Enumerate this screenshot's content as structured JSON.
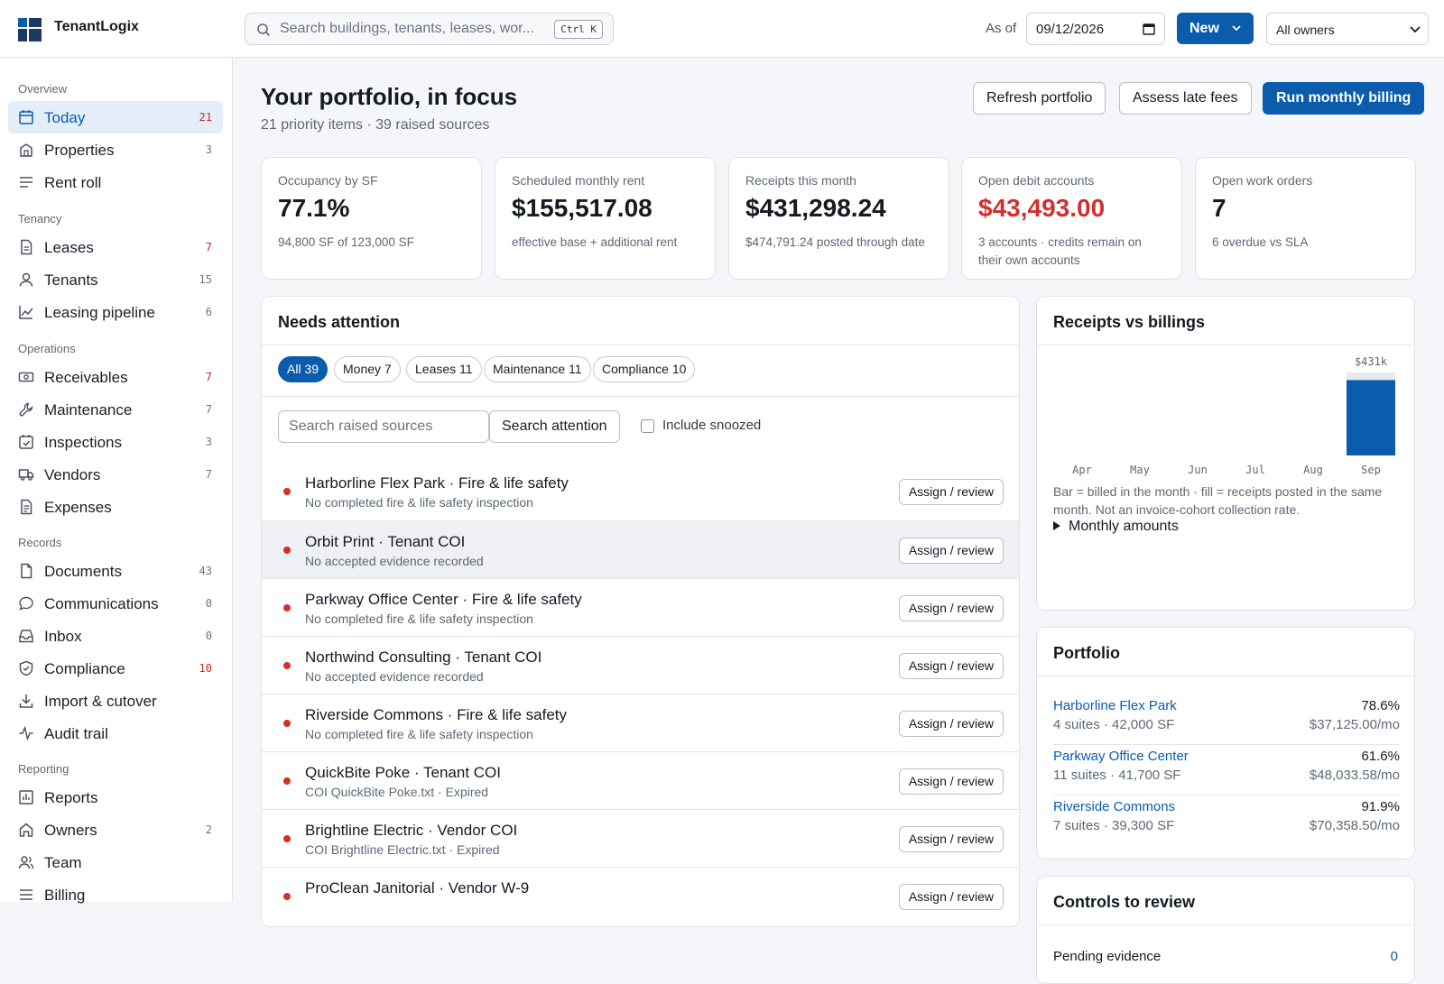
{
  "app": {
    "name": "TenantLogix"
  },
  "topbar": {
    "search_placeholder": "Search buildings, tenants, leases, wor...",
    "search_shortcut": "Ctrl K",
    "as_of_label": "As of",
    "as_of_date": "09/12/2026",
    "new_label": "New",
    "owner_filter": "All owners"
  },
  "sidebar": {
    "sections": {
      "overview": "Overview",
      "tenancy": "Tenancy",
      "operations": "Operations",
      "records": "Records",
      "reporting": "Reporting"
    },
    "items": {
      "today": {
        "label": "Today",
        "count": "21"
      },
      "properties": {
        "label": "Properties",
        "count": "3"
      },
      "rent_roll": {
        "label": "Rent roll"
      },
      "leases": {
        "label": "Leases",
        "count": "7"
      },
      "tenants": {
        "label": "Tenants",
        "count": "15"
      },
      "leasing_pipeline": {
        "label": "Leasing pipeline",
        "count": "6"
      },
      "receivables": {
        "label": "Receivables",
        "count": "7"
      },
      "maintenance": {
        "label": "Maintenance",
        "count": "7"
      },
      "inspections": {
        "label": "Inspections",
        "count": "3"
      },
      "vendors": {
        "label": "Vendors",
        "count": "7"
      },
      "expenses": {
        "label": "Expenses"
      },
      "documents": {
        "label": "Documents",
        "count": "43"
      },
      "communications": {
        "label": "Communications",
        "count": "0"
      },
      "inbox": {
        "label": "Inbox",
        "count": "0"
      },
      "compliance": {
        "label": "Compliance",
        "count": "10"
      },
      "import_cutover": {
        "label": "Import & cutover"
      },
      "audit_trail": {
        "label": "Audit trail"
      },
      "reports": {
        "label": "Reports"
      },
      "owners": {
        "label": "Owners",
        "count": "2"
      },
      "team": {
        "label": "Team"
      },
      "billing": {
        "label": "Billing"
      }
    }
  },
  "header": {
    "title": "Your portfolio, in focus",
    "subtitle": "21 priority items · 39 raised sources",
    "refresh_label": "Refresh portfolio",
    "late_fees_label": "Assess late fees",
    "billing_label": "Run monthly billing"
  },
  "kpis": {
    "occupancy": {
      "title": "Occupancy by SF",
      "value": "77.1%",
      "detail": "94,800 SF of 123,000 SF"
    },
    "scheduled_rent": {
      "title": "Scheduled monthly rent",
      "value": "$155,517.08",
      "detail": "effective base + additional rent"
    },
    "receipts": {
      "title": "Receipts this month",
      "value": "$431,298.24",
      "detail": "$474,791.24 posted through date"
    },
    "debit_accounts": {
      "title": "Open debit accounts",
      "value": "$43,493.00",
      "detail": "3 accounts · credits remain on their own accounts"
    },
    "work_orders": {
      "title": "Open work orders",
      "value": "7",
      "detail": "6 overdue vs SLA"
    }
  },
  "attention": {
    "title": "Needs attention",
    "filters": {
      "all": "All 39",
      "money": "Money 7",
      "leases": "Leases 11",
      "maintenance": "Maintenance 11",
      "compliance": "Compliance 10"
    },
    "search_placeholder": "Search raised sources",
    "search_button": "Search attention",
    "include_snoozed": "Include snoozed",
    "action_label": "Assign / review",
    "items": [
      {
        "title": "Harborline Flex Park · Fire & life safety",
        "subtitle": "No completed fire & life safety inspection"
      },
      {
        "title": "Orbit Print · Tenant COI",
        "subtitle": "No accepted evidence recorded"
      },
      {
        "title": "Parkway Office Center · Fire & life safety",
        "subtitle": "No completed fire & life safety inspection"
      },
      {
        "title": "Northwind Consulting · Tenant COI",
        "subtitle": "No accepted evidence recorded"
      },
      {
        "title": "Riverside Commons · Fire & life safety",
        "subtitle": "No completed fire & life safety inspection"
      },
      {
        "title": "QuickBite Poke · Tenant COI",
        "subtitle": "COI QuickBite Poke.txt · Expired"
      },
      {
        "title": "Brightline Electric · Vendor COI",
        "subtitle": "COI Brightline Electric.txt · Expired"
      },
      {
        "title": "ProClean Janitorial · Vendor W-9",
        "subtitle": ""
      }
    ]
  },
  "receipts_chart": {
    "title": "Receipts vs billings",
    "caption": "Bar = billed in the month · fill = receipts posted in the same month. Not an invoice-cohort collection rate.",
    "details_label": "Monthly amounts"
  },
  "chart_data": {
    "type": "bar",
    "categories": [
      "Apr",
      "May",
      "Jun",
      "Jul",
      "Aug",
      "Sep"
    ],
    "series": [
      {
        "name": "billed",
        "values": [
          0,
          0,
          0,
          0,
          0,
          474791.24
        ]
      },
      {
        "name": "receipts",
        "values": [
          0,
          0,
          0,
          0,
          0,
          431298.24
        ]
      }
    ],
    "data_labels": [
      "",
      "",
      "",
      "",
      "",
      "$431k"
    ],
    "colors": {
      "billed": "#e6e9ee",
      "receipts": "#0b5cad"
    }
  },
  "portfolio": {
    "title": "Portfolio",
    "properties": [
      {
        "name": "Harborline Flex Park",
        "detail": "4 suites · 42,000 SF",
        "occupancy": "78.6%",
        "rent": "$37,125.00/mo"
      },
      {
        "name": "Parkway Office Center",
        "detail": "11 suites · 41,700 SF",
        "occupancy": "61.6%",
        "rent": "$48,033.58/mo"
      },
      {
        "name": "Riverside Commons",
        "detail": "7 suites · 39,300 SF",
        "occupancy": "91.9%",
        "rent": "$70,358.50/mo"
      }
    ]
  },
  "controls": {
    "title": "Controls to review",
    "first_label": "Pending evidence",
    "first_value": "0"
  },
  "colors": {
    "accent": "#0b5cad",
    "alert": "#d32f2f"
  }
}
